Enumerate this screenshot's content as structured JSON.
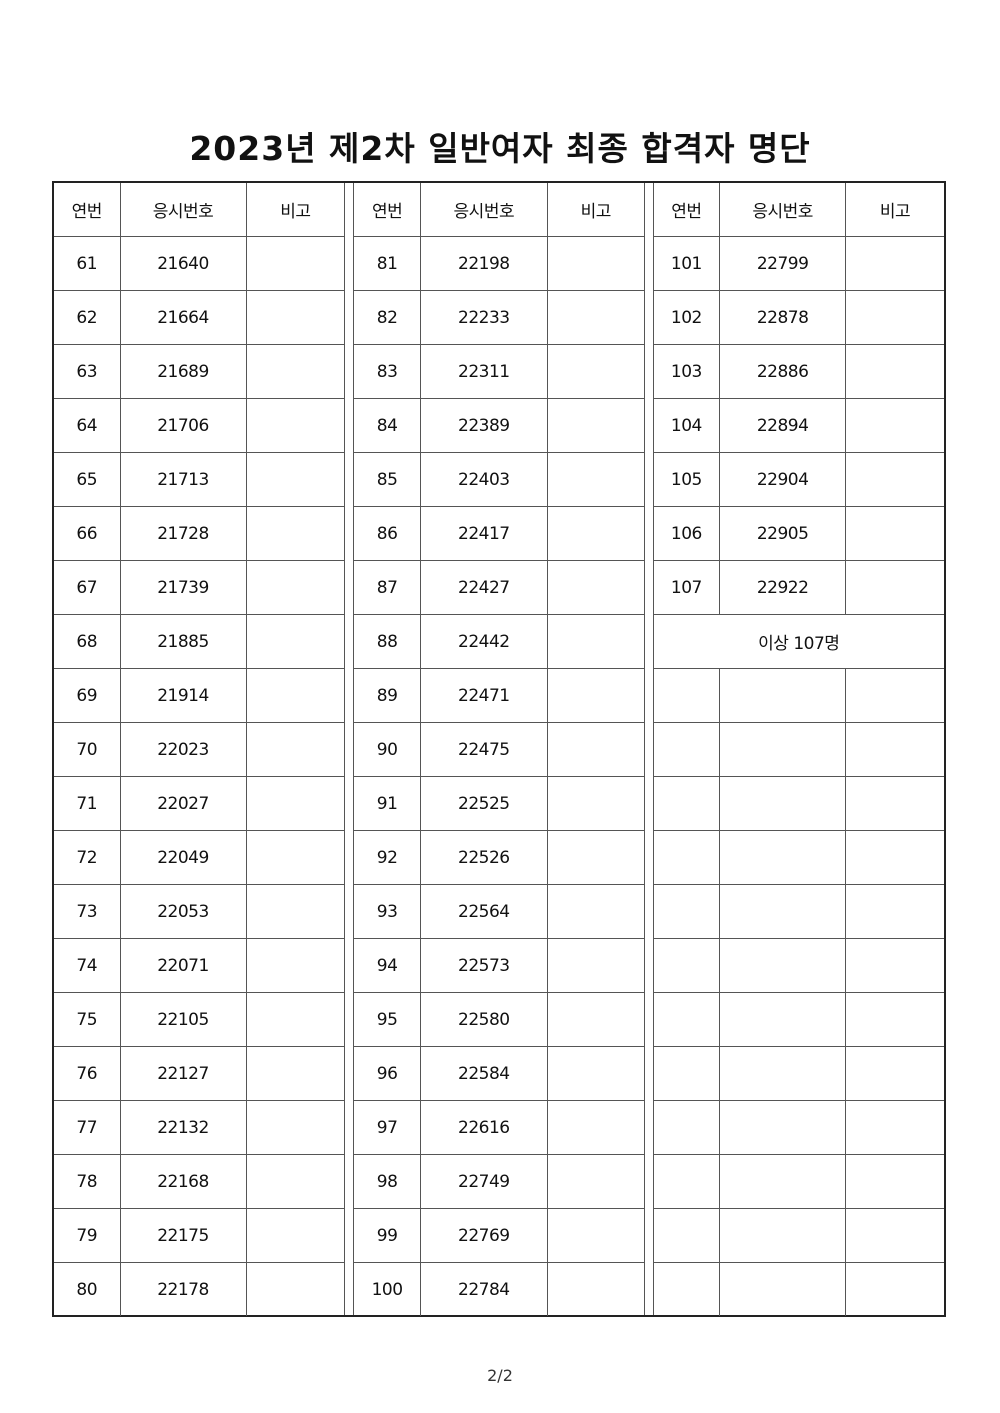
{
  "title": "2023년 제2차 일반여자 최종 합격자 명단",
  "headers": [
    "연번",
    "응시번호",
    "비고"
  ],
  "groups": [
    [
      [
        "61",
        "21640"
      ],
      [
        "62",
        "21664"
      ],
      [
        "63",
        "21689"
      ],
      [
        "64",
        "21706"
      ],
      [
        "65",
        "21713"
      ],
      [
        "66",
        "21728"
      ],
      [
        "67",
        "21739"
      ],
      [
        "68",
        "21885"
      ],
      [
        "69",
        "21914"
      ],
      [
        "70",
        "22023"
      ],
      [
        "71",
        "22027"
      ],
      [
        "72",
        "22049"
      ],
      [
        "73",
        "22053"
      ],
      [
        "74",
        "22071"
      ],
      [
        "75",
        "22105"
      ],
      [
        "76",
        "22127"
      ],
      [
        "77",
        "22132"
      ],
      [
        "78",
        "22168"
      ],
      [
        "79",
        "22175"
      ],
      [
        "80",
        "22178"
      ]
    ],
    [
      [
        "81",
        "22198"
      ],
      [
        "82",
        "22233"
      ],
      [
        "83",
        "22311"
      ],
      [
        "84",
        "22389"
      ],
      [
        "85",
        "22403"
      ],
      [
        "86",
        "22417"
      ],
      [
        "87",
        "22427"
      ],
      [
        "88",
        "22442"
      ],
      [
        "89",
        "22471"
      ],
      [
        "90",
        "22475"
      ],
      [
        "91",
        "22525"
      ],
      [
        "92",
        "22526"
      ],
      [
        "93",
        "22564"
      ],
      [
        "94",
        "22573"
      ],
      [
        "95",
        "22580"
      ],
      [
        "96",
        "22584"
      ],
      [
        "97",
        "22616"
      ],
      [
        "98",
        "22749"
      ],
      [
        "99",
        "22769"
      ],
      [
        "100",
        "22784"
      ]
    ],
    [
      [
        "101",
        "22799"
      ],
      [
        "102",
        "22878"
      ],
      [
        "103",
        "22886"
      ],
      [
        "104",
        "22894"
      ],
      [
        "105",
        "22904"
      ],
      [
        "106",
        "22905"
      ],
      [
        "107",
        "22922"
      ]
    ]
  ],
  "summary": "이상 107명",
  "page_number": "2/2"
}
